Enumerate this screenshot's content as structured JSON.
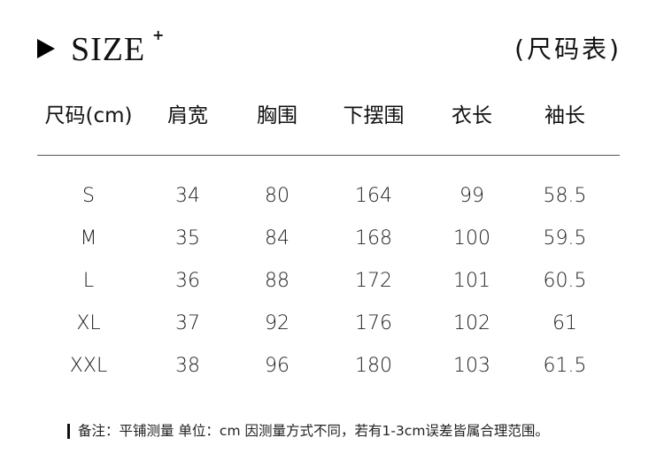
{
  "header": {
    "title": "SIZE",
    "title_sup": "+",
    "subtitle": "(尺码表)"
  },
  "table": {
    "columns": [
      "尺码(cm)",
      "肩宽",
      "胸围",
      "下摆围",
      "衣长",
      "袖长"
    ],
    "rows": [
      [
        "S",
        "34",
        "80",
        "164",
        "99",
        "58.5"
      ],
      [
        "M",
        "35",
        "84",
        "168",
        "100",
        "59.5"
      ],
      [
        "L",
        "36",
        "88",
        "172",
        "101",
        "60.5"
      ],
      [
        "XL",
        "37",
        "92",
        "176",
        "102",
        "61"
      ],
      [
        "XXL",
        "38",
        "96",
        "180",
        "103",
        "61.5"
      ]
    ]
  },
  "note": "备注：平铺测量 单位：cm 因测量方式不同，若有1-3cm误差皆属合理范围。"
}
